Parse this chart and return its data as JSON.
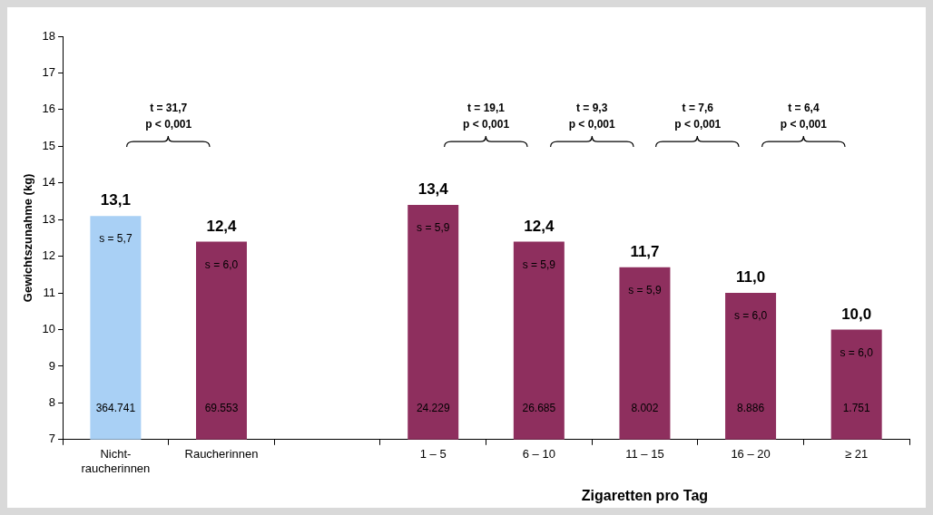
{
  "chart_data": {
    "type": "bar",
    "xlabel": "Zigaretten pro Tag",
    "ylabel": "Gewichtszunahme (kg)",
    "categories": [
      "Nicht-\nraucherinnen",
      "Raucherinnen",
      null,
      "1 – 5",
      "6 – 10",
      "11 – 15",
      "16 – 20",
      "≥ 21"
    ],
    "values": [
      13.1,
      12.4,
      null,
      13.4,
      12.4,
      11.7,
      11.0,
      10.0
    ],
    "colors": [
      "#a9d0f5",
      "#8e2f5e",
      "#8e2f5e",
      "#8e2f5e",
      "#8e2f5e",
      "#8e2f5e",
      "#8e2f5e",
      "#8e2f5e"
    ],
    "value_labels": [
      "13,1",
      "12,4",
      null,
      "13,4",
      "12,4",
      "11,7",
      "11,0",
      "10,0"
    ],
    "ylim": [
      7,
      18
    ],
    "yticks": [
      7,
      8,
      9,
      10,
      11,
      12,
      13,
      14,
      15,
      16,
      17,
      18
    ],
    "grid": false,
    "legend": false,
    "annotations": [
      "s = 5,7",
      "s = 6,0",
      "s = 5,9",
      "s = 5,9",
      "s = 5,9",
      "s = 6,0",
      "s = 6,0",
      "364.741",
      "69.553",
      "24.229",
      "26.685",
      "8.002",
      "8.886",
      "1.751",
      "t = 31,7\np < 0,001",
      "t = 19,1\np < 0,001",
      "t = 9,3\np < 0,001",
      "t = 7,6\np < 0,001",
      "t = 6,4\np < 0,001"
    ]
  }
}
